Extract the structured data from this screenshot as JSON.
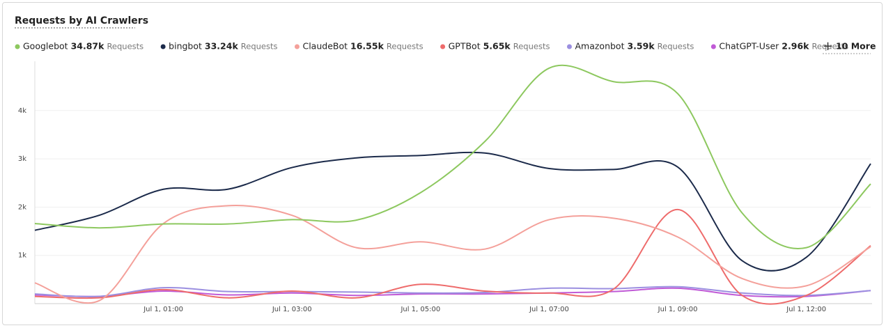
{
  "chart_data": {
    "type": "line",
    "title": "Requests by AI Crawlers",
    "legend_unit": "Requests",
    "more_button": "10 More",
    "categories": [
      null,
      null,
      "Jul 1, 01:00",
      null,
      "Jul 1, 03:00",
      null,
      "Jul 1, 05:00",
      null,
      "Jul 1, 07:00",
      null,
      "Jul 1, 09:00",
      null,
      "Jul 1, 12:00",
      null
    ],
    "ylim": [
      0,
      5000
    ],
    "yticks": [
      {
        "value": 1000,
        "label": "1k"
      },
      {
        "value": 2000,
        "label": "2k"
      },
      {
        "value": 3000,
        "label": "3k"
      },
      {
        "value": 4000,
        "label": "4k"
      }
    ],
    "grid": true,
    "series": [
      {
        "name": "Googlebot",
        "total": "34.87k",
        "color": "#8dc85f",
        "values": [
          1660,
          1570,
          1650,
          1650,
          1740,
          1730,
          2300,
          3360,
          4880,
          4600,
          4350,
          1880,
          1160,
          2480
        ]
      },
      {
        "name": "bingbot",
        "total": "33.24k",
        "color": "#1b2a4a",
        "values": [
          1520,
          1830,
          2370,
          2370,
          2820,
          3020,
          3070,
          3120,
          2800,
          2780,
          2830,
          890,
          960,
          2900
        ]
      },
      {
        "name": "ClaudeBot",
        "total": "16.55k",
        "color": "#f4a09a",
        "values": [
          430,
          60,
          1660,
          2030,
          1830,
          1160,
          1280,
          1130,
          1740,
          1770,
          1380,
          520,
          370,
          1180
        ]
      },
      {
        "name": "GPTBot",
        "total": "5.65k",
        "color": "#ee6b6b",
        "values": [
          150,
          120,
          290,
          120,
          260,
          120,
          400,
          260,
          220,
          300,
          1950,
          170,
          170,
          1200
        ]
      },
      {
        "name": "Amazonbot",
        "total": "3.59k",
        "color": "#9b8fe0",
        "values": [
          200,
          150,
          330,
          250,
          250,
          240,
          220,
          230,
          320,
          310,
          350,
          220,
          170,
          270
        ]
      },
      {
        "name": "ChatGPT-User",
        "total": "2.96k",
        "color": "#c05ad6",
        "values": [
          180,
          150,
          260,
          180,
          220,
          170,
          200,
          200,
          220,
          250,
          320,
          170,
          150,
          270
        ]
      }
    ]
  }
}
